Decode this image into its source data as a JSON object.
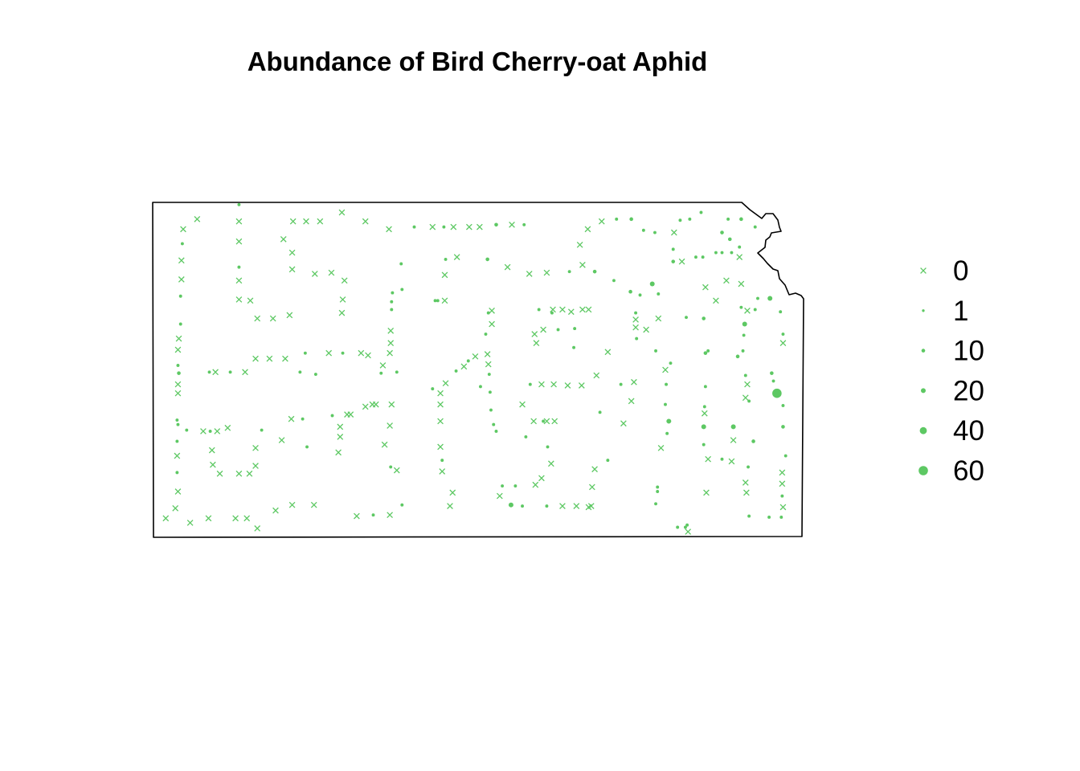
{
  "chart_data": {
    "type": "scatter",
    "title": "Abundance of Bird Cherry-oat Aphid",
    "point_color": "#5DC863",
    "outline_color": "#000000",
    "fields": [
      "lon",
      "lat",
      "abundance"
    ],
    "zero_marker": "cross",
    "nonzero_marker": "filled circle sized by abundance",
    "legend": {
      "placement": "right",
      "entries": [
        {
          "label": "0",
          "value": 0
        },
        {
          "label": "1",
          "value": 1
        },
        {
          "label": "10",
          "value": 10
        },
        {
          "label": "20",
          "value": 20
        },
        {
          "label": "40",
          "value": 40
        },
        {
          "label": "60",
          "value": 60
        }
      ]
    },
    "points": [
      [
        -101.54,
        39.85,
        0
      ],
      [
        -101.7,
        39.76,
        0
      ],
      [
        -101.71,
        39.63,
        5
      ],
      [
        -101.72,
        39.48,
        0
      ],
      [
        -101.72,
        39.31,
        0
      ],
      [
        -101.73,
        39.16,
        5
      ],
      [
        -101.73,
        38.91,
        5
      ],
      [
        -101.75,
        38.78,
        0
      ],
      [
        -101.76,
        38.68,
        0
      ],
      [
        -101.76,
        38.54,
        5
      ],
      [
        -101.75,
        38.47,
        10
      ],
      [
        -101.76,
        38.37,
        0
      ],
      [
        -101.76,
        38.29,
        0
      ],
      [
        -101.77,
        38.05,
        5
      ],
      [
        -101.76,
        38.01,
        5
      ],
      [
        -101.77,
        37.86,
        5
      ],
      [
        -101.77,
        37.73,
        0
      ],
      [
        -101.77,
        37.58,
        5
      ],
      [
        -101.76,
        37.41,
        0
      ],
      [
        -101.79,
        37.26,
        0
      ],
      [
        -101.9,
        37.17,
        0
      ],
      [
        -101.62,
        37.13,
        0
      ],
      [
        -101.41,
        37.17,
        0
      ],
      [
        -101.66,
        37.96,
        5
      ],
      [
        -101.06,
        39.98,
        5
      ],
      [
        -101.06,
        39.83,
        0
      ],
      [
        -101.06,
        39.65,
        0
      ],
      [
        -101.06,
        39.42,
        5
      ],
      [
        -101.06,
        39.3,
        0
      ],
      [
        -101.06,
        39.13,
        0
      ],
      [
        -100.93,
        39.12,
        0
      ],
      [
        -100.85,
        38.96,
        0
      ],
      [
        -100.67,
        38.96,
        0
      ],
      [
        -100.48,
        38.99,
        0
      ],
      [
        -100.87,
        38.6,
        0
      ],
      [
        -100.71,
        38.6,
        0
      ],
      [
        -100.53,
        38.6,
        0
      ],
      [
        -100.3,
        38.65,
        5
      ],
      [
        -100.03,
        38.65,
        0
      ],
      [
        -99.87,
        38.65,
        5
      ],
      [
        -99.66,
        38.65,
        0
      ],
      [
        -99.58,
        38.63,
        0
      ],
      [
        -101.4,
        38.48,
        5
      ],
      [
        -101.33,
        38.48,
        0
      ],
      [
        -101.16,
        38.48,
        5
      ],
      [
        -100.99,
        38.48,
        0
      ],
      [
        -100.36,
        38.48,
        5
      ],
      [
        -100.18,
        38.46,
        5
      ],
      [
        -101.47,
        37.95,
        0
      ],
      [
        -101.39,
        37.95,
        5
      ],
      [
        -101.31,
        37.95,
        0
      ],
      [
        -101.19,
        37.98,
        0
      ],
      [
        -101.37,
        37.78,
        0
      ],
      [
        -101.36,
        37.65,
        0
      ],
      [
        -101.28,
        37.57,
        0
      ],
      [
        -101.06,
        37.57,
        0
      ],
      [
        -100.94,
        37.57,
        0
      ],
      [
        -100.87,
        37.64,
        0
      ],
      [
        -100.87,
        37.8,
        0
      ],
      [
        -100.8,
        37.96,
        5
      ],
      [
        -100.57,
        37.87,
        0
      ],
      [
        -100.46,
        38.06,
        0
      ],
      [
        -100.33,
        38.06,
        5
      ],
      [
        -100.28,
        37.81,
        5
      ],
      [
        -99.99,
        38.09,
        5
      ],
      [
        -99.9,
        37.99,
        0
      ],
      [
        -99.9,
        37.9,
        0
      ],
      [
        -99.82,
        38.1,
        0
      ],
      [
        -99.78,
        38.1,
        0
      ],
      [
        -99.92,
        37.76,
        0
      ],
      [
        -101.1,
        37.17,
        0
      ],
      [
        -100.97,
        37.17,
        0
      ],
      [
        -100.85,
        37.08,
        0
      ],
      [
        -100.64,
        37.24,
        0
      ],
      [
        -100.45,
        37.29,
        0
      ],
      [
        -100.2,
        37.29,
        0
      ],
      [
        -99.71,
        37.19,
        0
      ],
      [
        -99.52,
        37.2,
        5
      ],
      [
        -99.33,
        37.2,
        0
      ],
      [
        -99.19,
        37.29,
        5
      ],
      [
        -100.44,
        39.83,
        0
      ],
      [
        -100.29,
        39.83,
        0
      ],
      [
        -100.13,
        39.83,
        0
      ],
      [
        -99.88,
        39.91,
        0
      ],
      [
        -99.61,
        39.83,
        0
      ],
      [
        -99.34,
        39.76,
        0
      ],
      [
        -99.05,
        39.78,
        5
      ],
      [
        -98.84,
        39.78,
        0
      ],
      [
        -98.71,
        39.78,
        5
      ],
      [
        -98.6,
        39.78,
        0
      ],
      [
        -98.42,
        39.78,
        0
      ],
      [
        -98.3,
        39.78,
        0
      ],
      [
        -98.11,
        39.8,
        10
      ],
      [
        -97.93,
        39.8,
        0
      ],
      [
        -97.79,
        39.8,
        5
      ],
      [
        -100.55,
        39.67,
        0
      ],
      [
        -100.45,
        39.55,
        0
      ],
      [
        -100.45,
        39.4,
        0
      ],
      [
        -100.19,
        39.36,
        0
      ],
      [
        -100.0,
        39.37,
        0
      ],
      [
        -99.85,
        39.3,
        0
      ],
      [
        -99.87,
        39.13,
        0
      ],
      [
        -99.88,
        39.01,
        0
      ],
      [
        -99.2,
        39.45,
        5
      ],
      [
        -99.3,
        39.19,
        5
      ],
      [
        -99.31,
        39.11,
        5
      ],
      [
        -99.31,
        39.04,
        5
      ],
      [
        -99.19,
        39.22,
        5
      ],
      [
        -99.32,
        38.85,
        0
      ],
      [
        -99.32,
        38.74,
        0
      ],
      [
        -99.33,
        38.65,
        0
      ],
      [
        -99.41,
        38.54,
        0
      ],
      [
        -99.43,
        38.47,
        5
      ],
      [
        -99.25,
        38.48,
        5
      ],
      [
        -99.31,
        38.19,
        0
      ],
      [
        -99.53,
        38.19,
        0
      ],
      [
        -99.49,
        38.19,
        0
      ],
      [
        -99.61,
        38.17,
        0
      ],
      [
        -99.33,
        38.0,
        0
      ],
      [
        -99.39,
        37.83,
        0
      ],
      [
        -99.32,
        37.63,
        5
      ],
      [
        -99.25,
        37.6,
        0
      ],
      [
        -98.69,
        39.49,
        5
      ],
      [
        -98.56,
        39.51,
        0
      ],
      [
        -98.7,
        39.35,
        0
      ],
      [
        -98.81,
        39.12,
        5
      ],
      [
        -98.78,
        39.12,
        5
      ],
      [
        -98.7,
        39.12,
        0
      ],
      [
        -98.84,
        38.33,
        5
      ],
      [
        -98.75,
        38.29,
        0
      ],
      [
        -98.69,
        38.38,
        0
      ],
      [
        -98.75,
        38.19,
        0
      ],
      [
        -98.75,
        38.04,
        0
      ],
      [
        -98.75,
        37.81,
        0
      ],
      [
        -98.73,
        37.69,
        5
      ],
      [
        -98.73,
        37.59,
        0
      ],
      [
        -98.61,
        37.4,
        0
      ],
      [
        -98.64,
        37.28,
        0
      ],
      [
        -98.21,
        39.49,
        10
      ],
      [
        -97.98,
        39.42,
        0
      ],
      [
        -98.16,
        39.03,
        0
      ],
      [
        -98.2,
        39.01,
        5
      ],
      [
        -98.16,
        38.91,
        0
      ],
      [
        -98.23,
        38.82,
        5
      ],
      [
        -98.21,
        38.64,
        0
      ],
      [
        -98.35,
        38.62,
        0
      ],
      [
        -98.43,
        38.58,
        5
      ],
      [
        -98.48,
        38.53,
        0
      ],
      [
        -98.57,
        38.49,
        5
      ],
      [
        -98.19,
        38.46,
        5
      ],
      [
        -98.2,
        38.55,
        0
      ],
      [
        -98.29,
        38.35,
        5
      ],
      [
        -98.18,
        38.3,
        5
      ],
      [
        -98.17,
        38.14,
        5
      ],
      [
        -98.14,
        38.01,
        5
      ],
      [
        -98.11,
        37.95,
        5
      ],
      [
        -98.04,
        37.46,
        5
      ],
      [
        -98.07,
        37.37,
        0
      ],
      [
        -97.94,
        37.29,
        20
      ],
      [
        -97.81,
        37.28,
        5
      ],
      [
        -97.89,
        37.46,
        5
      ],
      [
        -97.66,
        37.47,
        0
      ],
      [
        -97.53,
        37.28,
        5
      ],
      [
        -97.35,
        37.28,
        0
      ],
      [
        -97.19,
        37.28,
        0
      ],
      [
        -97.05,
        37.27,
        0
      ],
      [
        -97.02,
        37.28,
        0
      ],
      [
        -97.59,
        37.53,
        0
      ],
      [
        -97.48,
        37.66,
        0
      ],
      [
        -97.52,
        37.81,
        5
      ],
      [
        -97.77,
        37.9,
        5
      ],
      [
        -97.68,
        38.04,
        0
      ],
      [
        -97.57,
        38.04,
        5
      ],
      [
        -97.53,
        38.04,
        0
      ],
      [
        -97.44,
        38.04,
        0
      ],
      [
        -97.81,
        38.19,
        0
      ],
      [
        -97.72,
        38.37,
        5
      ],
      [
        -97.59,
        38.37,
        0
      ],
      [
        -97.45,
        38.37,
        0
      ],
      [
        -97.29,
        38.36,
        0
      ],
      [
        -97.13,
        38.36,
        0
      ],
      [
        -96.96,
        38.45,
        0
      ],
      [
        -96.68,
        38.37,
        5
      ],
      [
        -96.53,
        38.39,
        0
      ],
      [
        -96.56,
        38.22,
        0
      ],
      [
        -96.65,
        38.02,
        0
      ],
      [
        -96.92,
        38.12,
        5
      ],
      [
        -96.83,
        37.69,
        5
      ],
      [
        -96.98,
        37.61,
        0
      ],
      [
        -97.01,
        37.45,
        0
      ],
      [
        -97.73,
        39.36,
        0
      ],
      [
        -97.53,
        39.37,
        0
      ],
      [
        -97.27,
        39.38,
        5
      ],
      [
        -97.12,
        39.44,
        0
      ],
      [
        -96.98,
        39.38,
        10
      ],
      [
        -97.15,
        39.62,
        0
      ],
      [
        -97.06,
        39.76,
        0
      ],
      [
        -96.9,
        39.83,
        0
      ],
      [
        -96.73,
        39.85,
        5
      ],
      [
        -96.56,
        39.85,
        10
      ],
      [
        -96.42,
        39.75,
        5
      ],
      [
        -96.29,
        39.73,
        5
      ],
      [
        -97.62,
        39.04,
        5
      ],
      [
        -97.46,
        39.04,
        0
      ],
      [
        -97.35,
        39.04,
        0
      ],
      [
        -97.25,
        39.02,
        0
      ],
      [
        -97.12,
        39.04,
        0
      ],
      [
        -97.05,
        39.04,
        0
      ],
      [
        -97.47,
        39.01,
        5
      ],
      [
        -97.57,
        38.86,
        0
      ],
      [
        -97.67,
        38.82,
        0
      ],
      [
        -97.65,
        38.74,
        0
      ],
      [
        -97.4,
        38.86,
        5
      ],
      [
        -97.21,
        38.87,
        5
      ],
      [
        -97.22,
        38.7,
        5
      ],
      [
        -96.83,
        38.66,
        0
      ],
      [
        -96.76,
        39.3,
        5
      ],
      [
        -96.57,
        39.2,
        10
      ],
      [
        -96.46,
        39.17,
        5
      ],
      [
        -96.32,
        39.27,
        20
      ],
      [
        -96.25,
        39.18,
        5
      ],
      [
        -96.51,
        39.01,
        5
      ],
      [
        -96.51,
        38.95,
        0
      ],
      [
        -96.51,
        38.88,
        0
      ],
      [
        -96.25,
        38.96,
        0
      ],
      [
        -96.5,
        38.78,
        5
      ],
      [
        -96.39,
        38.86,
        0
      ],
      [
        -96.28,
        38.67,
        5
      ],
      [
        -96.11,
        38.56,
        5
      ],
      [
        -96.17,
        38.5,
        0
      ],
      [
        -96.16,
        38.37,
        5
      ],
      [
        -96.17,
        38.19,
        5
      ],
      [
        -96.13,
        38.04,
        20
      ],
      [
        -96.15,
        37.93,
        5
      ],
      [
        -96.22,
        37.8,
        0
      ],
      [
        -96.26,
        37.45,
        5
      ],
      [
        -96.26,
        37.41,
        5
      ],
      [
        -96.28,
        37.3,
        5
      ],
      [
        -96.03,
        37.09,
        5
      ],
      [
        -95.94,
        37.09,
        5
      ],
      [
        -95.92,
        37.11,
        5
      ],
      [
        -95.91,
        37.05,
        0
      ],
      [
        -96.07,
        39.73,
        0
      ],
      [
        -96.0,
        39.84,
        5
      ],
      [
        -95.89,
        39.85,
        5
      ],
      [
        -95.76,
        39.91,
        5
      ],
      [
        -95.45,
        39.85,
        5
      ],
      [
        -95.3,
        39.85,
        10
      ],
      [
        -95.14,
        39.78,
        5
      ],
      [
        -95.52,
        39.73,
        10
      ],
      [
        -95.43,
        39.67,
        10
      ],
      [
        -95.32,
        39.6,
        5
      ],
      [
        -95.52,
        39.55,
        5
      ],
      [
        -96.08,
        39.58,
        5
      ],
      [
        -96.08,
        39.47,
        10
      ],
      [
        -95.98,
        39.47,
        0
      ],
      [
        -95.82,
        39.51,
        5
      ],
      [
        -95.74,
        39.51,
        5
      ],
      [
        -95.59,
        39.55,
        5
      ],
      [
        -95.41,
        39.55,
        5
      ],
      [
        -95.32,
        39.51,
        0
      ],
      [
        -95.71,
        39.24,
        0
      ],
      [
        -95.59,
        39.12,
        0
      ],
      [
        -95.47,
        39.3,
        0
      ],
      [
        -95.3,
        39.27,
        0
      ],
      [
        -95.3,
        39.06,
        5
      ],
      [
        -95.23,
        39.03,
        0
      ],
      [
        -95.14,
        39.04,
        5
      ],
      [
        -95.11,
        39.14,
        5
      ],
      [
        -94.97,
        39.14,
        20
      ],
      [
        -94.85,
        39.02,
        5
      ],
      [
        -95.26,
        38.91,
        20
      ],
      [
        -95.93,
        38.97,
        5
      ],
      [
        -95.73,
        38.96,
        10
      ],
      [
        -95.71,
        38.65,
        10
      ],
      [
        -95.68,
        38.67,
        5
      ],
      [
        -95.34,
        38.62,
        10
      ],
      [
        -95.28,
        38.67,
        5
      ],
      [
        -95.27,
        38.81,
        5
      ],
      [
        -95.25,
        38.45,
        5
      ],
      [
        -95.23,
        38.37,
        0
      ],
      [
        -95.25,
        38.25,
        0
      ],
      [
        -95.21,
        38.22,
        5
      ],
      [
        -94.95,
        38.47,
        10
      ],
      [
        -94.93,
        38.4,
        5
      ],
      [
        -94.89,
        38.29,
        60
      ],
      [
        -94.82,
        38.18,
        5
      ],
      [
        -94.82,
        38.82,
        5
      ],
      [
        -94.82,
        38.74,
        0
      ],
      [
        -94.82,
        37.99,
        10
      ],
      [
        -95.71,
        38.35,
        5
      ],
      [
        -95.72,
        38.17,
        5
      ],
      [
        -95.72,
        38.11,
        0
      ],
      [
        -95.73,
        37.99,
        20
      ],
      [
        -95.73,
        37.83,
        5
      ],
      [
        -95.68,
        37.7,
        0
      ],
      [
        -95.52,
        37.7,
        5
      ],
      [
        -95.41,
        37.68,
        0
      ],
      [
        -95.39,
        37.99,
        20
      ],
      [
        -95.39,
        37.87,
        0
      ],
      [
        -95.16,
        37.86,
        10
      ],
      [
        -95.22,
        37.63,
        5
      ],
      [
        -95.25,
        37.49,
        0
      ],
      [
        -95.24,
        37.4,
        0
      ],
      [
        -95.7,
        37.4,
        0
      ],
      [
        -95.21,
        37.19,
        5
      ],
      [
        -94.98,
        37.18,
        5
      ],
      [
        -94.84,
        37.18,
        5
      ],
      [
        -94.82,
        37.27,
        0
      ],
      [
        -94.83,
        37.37,
        5
      ],
      [
        -94.83,
        37.48,
        0
      ],
      [
        -94.83,
        37.58,
        0
      ],
      [
        -94.79,
        37.73,
        5
      ]
    ]
  }
}
